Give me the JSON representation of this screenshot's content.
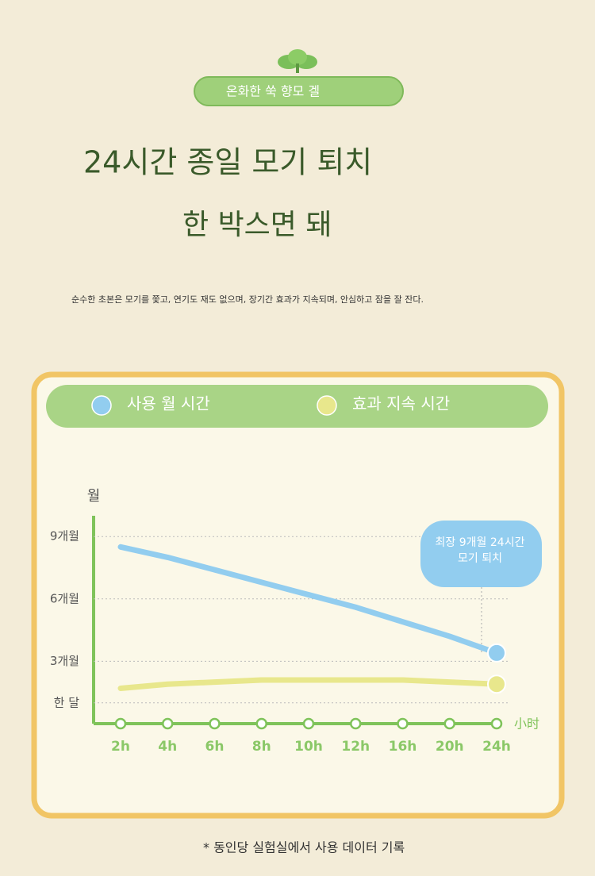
{
  "header": {
    "badge": "온화한 쑥 향모 겔",
    "title_lines": [
      "24시간 종일 모기 퇴치",
      "한 박스면 돼"
    ],
    "description": "순수한 초본은 모기를 쫓고, 연기도 재도 없으며, 장기간 효과가 지속되며, 안심하고 잠을 잘 잔다."
  },
  "chart_data": {
    "type": "line",
    "ylabel": "월",
    "xlabel": "小时",
    "categories": [
      "2h",
      "4h",
      "6h",
      "8h",
      "10h",
      "12h",
      "16h",
      "20h",
      "24h"
    ],
    "series": [
      {
        "name": "사용 월 시간",
        "color": "#92cdef",
        "values": [
          8.5,
          8.0,
          7.4,
          6.8,
          6.2,
          5.6,
          4.9,
          4.2,
          3.4
        ]
      },
      {
        "name": "효과 지속 시간",
        "color": "#e8e78c",
        "values": [
          1.7,
          1.9,
          2.0,
          2.1,
          2.1,
          2.1,
          2.1,
          2.0,
          1.9
        ]
      }
    ],
    "ylim": [
      0,
      10
    ],
    "yticks": [
      {
        "value": 1,
        "label": "한 달"
      },
      {
        "value": 3,
        "label": "3개월"
      },
      {
        "value": 6,
        "label": "6개월"
      },
      {
        "value": 9,
        "label": "9개월"
      }
    ],
    "grid": true,
    "legend": "top",
    "annotation": [
      "최장 9개월 24시간",
      "모기 퇴치"
    ]
  },
  "footnote": "* 동인당 실험실에서 사용 데이터 기록"
}
